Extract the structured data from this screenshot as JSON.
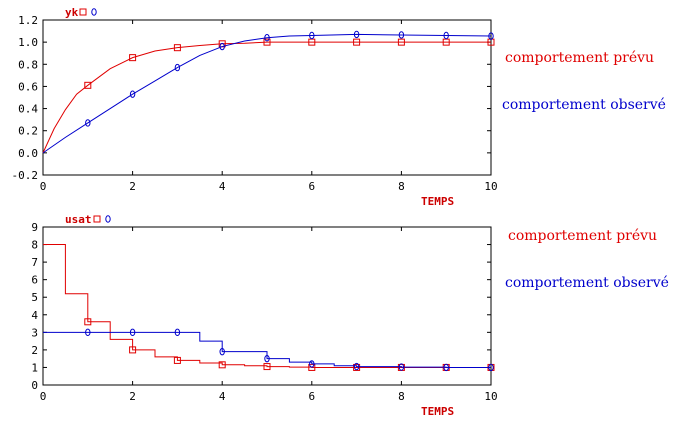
{
  "colors": {
    "predicted": "#e00000",
    "observed": "#0000cc",
    "axis": "#000000",
    "label": "#cc0000"
  },
  "chart_data": [
    {
      "type": "line",
      "ylabel": "yk",
      "xlabel": "TEMPS",
      "xlim": [
        0,
        10
      ],
      "ylim": [
        -0.2,
        1.2
      ],
      "x_ticks": [
        0,
        2,
        4,
        6,
        8,
        10
      ],
      "y_ticks": [
        -0.2,
        0.0,
        0.2,
        0.4,
        0.6,
        0.8,
        1.0,
        1.2
      ],
      "y_tick_labels": [
        "-0.2",
        "0.0",
        "0.2",
        "0.4",
        "0.6",
        "0.8",
        "1.0",
        "1.2"
      ],
      "legend": [
        "comportement prévu",
        "comportement observé"
      ],
      "series": [
        {
          "name": "comportement prévu",
          "marker": "square",
          "x": [
            0,
            0.25,
            0.5,
            0.75,
            1,
            1.5,
            2,
            2.5,
            3,
            3.5,
            4,
            4.5,
            5,
            6,
            7,
            8,
            9,
            10
          ],
          "values": [
            0,
            0.22,
            0.39,
            0.53,
            0.61,
            0.76,
            0.86,
            0.92,
            0.95,
            0.97,
            0.985,
            0.99,
            1.0,
            1.0,
            1.0,
            1.0,
            1.0,
            1.0
          ],
          "marker_x": [
            1,
            2,
            3,
            4,
            5,
            6,
            7,
            8,
            9,
            10
          ]
        },
        {
          "name": "comportement observé",
          "marker": "diamond",
          "x": [
            0,
            0.5,
            1,
            1.5,
            2,
            2.5,
            3,
            3.5,
            4,
            4.5,
            5,
            5.5,
            6,
            7,
            8,
            9,
            10
          ],
          "values": [
            0,
            0.14,
            0.27,
            0.4,
            0.53,
            0.65,
            0.77,
            0.88,
            0.96,
            1.01,
            1.04,
            1.055,
            1.06,
            1.07,
            1.065,
            1.06,
            1.055
          ],
          "marker_x": [
            1,
            2,
            3,
            4,
            5,
            6,
            7,
            8,
            9,
            10
          ]
        }
      ]
    },
    {
      "type": "line",
      "ylabel": "usat",
      "xlabel": "TEMPS",
      "xlim": [
        0,
        10
      ],
      "ylim": [
        0,
        9
      ],
      "x_ticks": [
        0,
        2,
        4,
        6,
        8,
        10
      ],
      "y_ticks": [
        0,
        1,
        2,
        3,
        4,
        5,
        6,
        7,
        8,
        9
      ],
      "y_tick_labels": [
        "0",
        "1",
        "2",
        "3",
        "4",
        "5",
        "6",
        "7",
        "8",
        "9"
      ],
      "legend": [
        "comportement prévu",
        "comportement observé"
      ],
      "series": [
        {
          "name": "comportement prévu",
          "marker": "square",
          "step": true,
          "x": [
            0,
            0.5,
            1,
            1.5,
            2,
            2.5,
            3,
            3.5,
            4,
            4.5,
            5,
            5.5,
            6,
            7,
            8,
            9,
            10
          ],
          "values": [
            8.0,
            5.2,
            3.6,
            2.6,
            2.0,
            1.6,
            1.4,
            1.25,
            1.15,
            1.1,
            1.05,
            1.02,
            1.0,
            1.0,
            1.0,
            1.0,
            1.0
          ],
          "marker_x": [
            1,
            2,
            3,
            4,
            5,
            6,
            7,
            8,
            9,
            10
          ]
        },
        {
          "name": "comportement observé",
          "marker": "diamond",
          "step": true,
          "x": [
            0,
            0.5,
            1,
            1.5,
            2,
            2.5,
            3,
            3.5,
            4,
            4.5,
            5,
            5.5,
            6,
            6.5,
            7,
            8,
            9,
            10
          ],
          "values": [
            3.0,
            3.0,
            3.0,
            3.0,
            3.0,
            3.0,
            3.0,
            2.5,
            1.9,
            1.9,
            1.5,
            1.3,
            1.2,
            1.1,
            1.05,
            1.02,
            1.0,
            1.0
          ],
          "marker_x": [
            1,
            2,
            3,
            4,
            5,
            6,
            7,
            8,
            9,
            10
          ]
        }
      ]
    }
  ]
}
